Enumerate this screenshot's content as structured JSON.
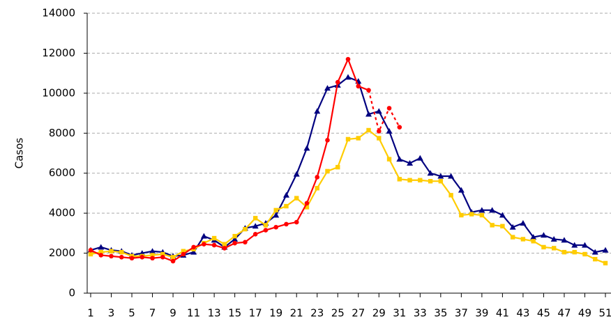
{
  "chart_data": {
    "type": "line",
    "y_label": "Casos",
    "x": [
      1,
      2,
      3,
      4,
      5,
      6,
      7,
      8,
      9,
      10,
      11,
      12,
      13,
      14,
      15,
      16,
      17,
      18,
      19,
      20,
      21,
      22,
      23,
      24,
      25,
      26,
      27,
      28,
      29,
      30,
      31,
      32,
      33,
      34,
      35,
      36,
      37,
      38,
      39,
      40,
      41,
      42,
      43,
      44,
      45,
      46,
      47,
      48,
      49,
      50,
      51
    ],
    "xlim": [
      1,
      51
    ],
    "xticks": [
      1,
      3,
      5,
      7,
      9,
      11,
      13,
      15,
      17,
      19,
      21,
      23,
      25,
      27,
      29,
      31,
      33,
      35,
      37,
      39,
      41,
      43,
      45,
      47,
      49,
      51
    ],
    "ylim": [
      0,
      14000
    ],
    "yticks": [
      0,
      2000,
      4000,
      6000,
      8000,
      10000,
      12000,
      14000
    ],
    "grid": true,
    "series": [
      {
        "color": "#000080",
        "marker": "triangle",
        "values": [
          2150,
          2300,
          2150,
          2100,
          1900,
          2000,
          2100,
          2050,
          1850,
          1900,
          2050,
          2850,
          2650,
          2300,
          2700,
          3250,
          3350,
          3500,
          3900,
          4900,
          5950,
          7250,
          9100,
          10250,
          10400,
          10800,
          10600,
          8950,
          9100,
          8100,
          6700,
          6500,
          6750,
          6000,
          5850,
          5850,
          5150,
          4050,
          4150,
          4150,
          3900,
          3300,
          3500,
          2800,
          2900,
          2700,
          2650,
          2400,
          2400,
          2050,
          2150
        ]
      },
      {
        "color": "#ffcc00",
        "marker": "square",
        "values": [
          1950,
          2050,
          2100,
          2050,
          1850,
          1850,
          1900,
          1950,
          1800,
          2100,
          2200,
          2500,
          2750,
          2450,
          2850,
          3200,
          3750,
          3400,
          4150,
          4350,
          4750,
          4300,
          5250,
          6100,
          6300,
          7700,
          7750,
          8150,
          7750,
          6700,
          5700,
          5650,
          5650,
          5600,
          5600,
          4900,
          3900,
          3950,
          3900,
          3400,
          3350,
          2800,
          2700,
          2600,
          2300,
          2250,
          2050,
          2050,
          1950,
          1700,
          1500
        ]
      },
      {
        "color": "#ff0000",
        "marker": "circle",
        "dashed_from": 28,
        "values": [
          2150,
          1900,
          1850,
          1800,
          1750,
          1800,
          1750,
          1800,
          1600,
          1950,
          2300,
          2450,
          2400,
          2250,
          2500,
          2550,
          2950,
          3150,
          3300,
          3450,
          3550,
          4500,
          5800,
          7650,
          10550,
          11700,
          10350,
          10150,
          8100,
          9250,
          8300,
          null,
          null,
          null,
          null,
          null,
          null,
          null,
          null,
          null,
          null,
          null,
          null,
          null,
          null,
          null,
          null,
          null,
          null,
          null,
          null
        ]
      }
    ]
  }
}
